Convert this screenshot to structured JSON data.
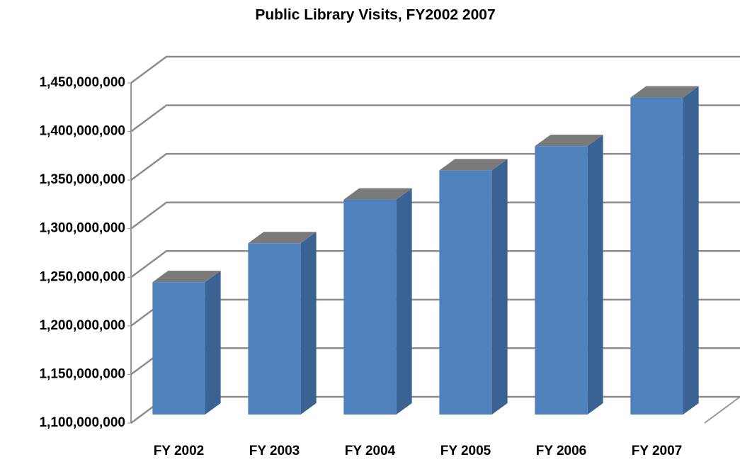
{
  "chart_data": {
    "type": "bar3d",
    "title": "Public Library Visits, FY2002 2007",
    "categories": [
      "FY 2002",
      "FY 2003",
      "FY 2004",
      "FY 2005",
      "FY 2006",
      "FY 2007"
    ],
    "values": [
      1245000000,
      1285000000,
      1330000000,
      1360000000,
      1385000000,
      1435000000
    ],
    "color": "#4f81bd",
    "ylim": [
      1100000000,
      1450000000
    ],
    "yticks": [
      {
        "value": 1100000000,
        "label": "1,100,000,000"
      },
      {
        "value": 1150000000,
        "label": "1,150,000,000"
      },
      {
        "value": 1200000000,
        "label": "1,200,000,000"
      },
      {
        "value": 1250000000,
        "label": "1,250,000,000"
      },
      {
        "value": 1300000000,
        "label": "1,300,000,000"
      },
      {
        "value": 1350000000,
        "label": "1,350,000,000"
      },
      {
        "value": 1400000000,
        "label": "1,400,000,000"
      },
      {
        "value": 1450000000,
        "label": "1,450,000,000"
      }
    ],
    "grid": true
  }
}
